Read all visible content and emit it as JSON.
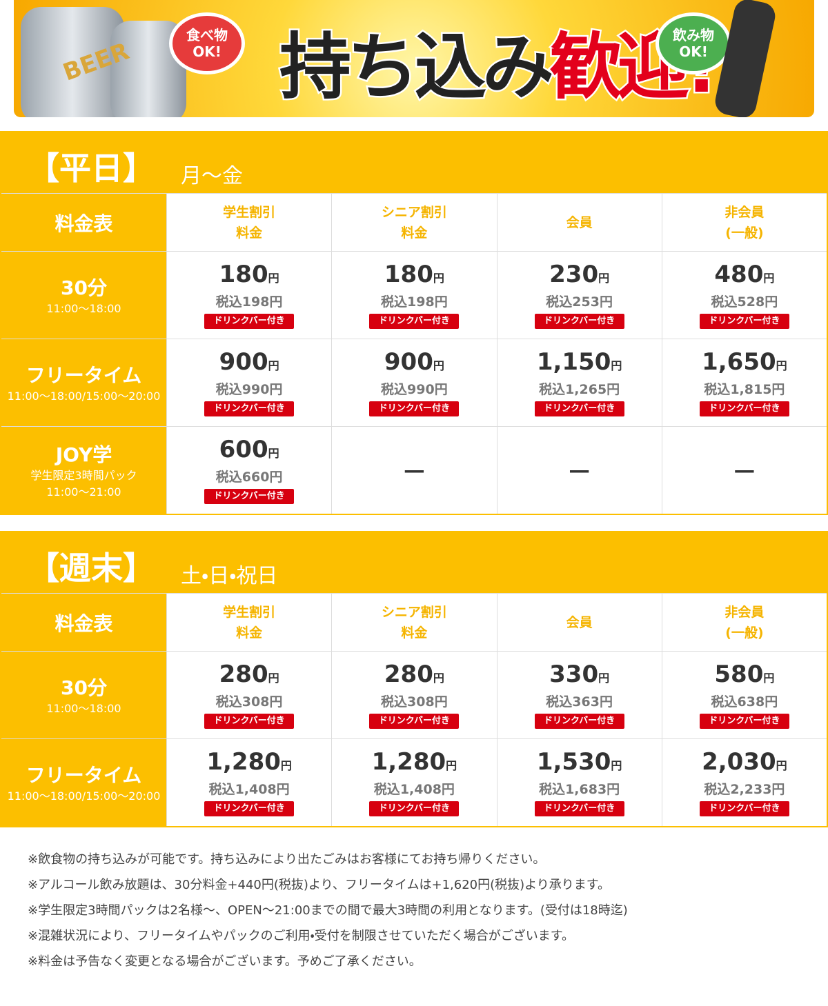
{
  "banner": {
    "beer": "BEER",
    "food": [
      "食べ物",
      "OK!"
    ],
    "title_black": "持ち込み",
    "title_red": "歓迎!",
    "drink": [
      "飲み物",
      "OK!"
    ]
  },
  "sections": [
    {
      "label": "【平日】",
      "days": "月〜金",
      "header": [
        [
          "料金表"
        ],
        [
          "学生割引",
          "料金"
        ],
        [
          "シニア割引",
          "料金"
        ],
        [
          "会員"
        ],
        [
          "非会員",
          "(一般)"
        ]
      ],
      "rows": [
        {
          "name": "30分",
          "sub": [
            "11:00〜18:00"
          ],
          "cells": [
            {
              "price": "180",
              "unit": "円",
              "tax": "税込198円",
              "badge": "ドリンクバー付き"
            },
            {
              "price": "180",
              "unit": "円",
              "tax": "税込198円",
              "badge": "ドリンクバー付き"
            },
            {
              "price": "230",
              "unit": "円",
              "tax": "税込253円",
              "badge": "ドリンクバー付き"
            },
            {
              "price": "480",
              "unit": "円",
              "tax": "税込528円",
              "badge": "ドリンクバー付き"
            }
          ]
        },
        {
          "name": "フリータイム",
          "sub": [
            "11:00〜18:00/15:00〜20:00"
          ],
          "cells": [
            {
              "price": "900",
              "unit": "円",
              "tax": "税込990円",
              "badge": "ドリンクバー付き"
            },
            {
              "price": "900",
              "unit": "円",
              "tax": "税込990円",
              "badge": "ドリンクバー付き"
            },
            {
              "price": "1,150",
              "unit": "円",
              "tax": "税込1,265円",
              "badge": "ドリンクバー付き"
            },
            {
              "price": "1,650",
              "unit": "円",
              "tax": "税込1,815円",
              "badge": "ドリンクバー付き"
            }
          ]
        },
        {
          "name": "JOY学",
          "sub": [
            "学生限定3時間パック",
            "11:00〜21:00"
          ],
          "cells": [
            {
              "price": "600",
              "unit": "円",
              "tax": "税込660円",
              "badge": "ドリンクバー付き"
            },
            {
              "dash": "－"
            },
            {
              "dash": "－"
            },
            {
              "dash": "－"
            }
          ]
        }
      ]
    },
    {
      "label": "【週末】",
      "days": "土・日・祝日",
      "header": [
        [
          "料金表"
        ],
        [
          "学生割引",
          "料金"
        ],
        [
          "シニア割引",
          "料金"
        ],
        [
          "会員"
        ],
        [
          "非会員",
          "(一般)"
        ]
      ],
      "rows": [
        {
          "name": "30分",
          "sub": [
            "11:00〜18:00"
          ],
          "cells": [
            {
              "price": "280",
              "unit": "円",
              "tax": "税込308円",
              "badge": "ドリンクバー付き"
            },
            {
              "price": "280",
              "unit": "円",
              "tax": "税込308円",
              "badge": "ドリンクバー付き"
            },
            {
              "price": "330",
              "unit": "円",
              "tax": "税込363円",
              "badge": "ドリンクバー付き"
            },
            {
              "price": "580",
              "unit": "円",
              "tax": "税込638円",
              "badge": "ドリンクバー付き"
            }
          ]
        },
        {
          "name": "フリータイム",
          "sub": [
            "11:00〜18:00/15:00〜20:00"
          ],
          "cells": [
            {
              "price": "1,280",
              "unit": "円",
              "tax": "税込1,408円",
              "badge": "ドリンクバー付き"
            },
            {
              "price": "1,280",
              "unit": "円",
              "tax": "税込1,408円",
              "badge": "ドリンクバー付き"
            },
            {
              "price": "1,530",
              "unit": "円",
              "tax": "税込1,683円",
              "badge": "ドリンクバー付き"
            },
            {
              "price": "2,030",
              "unit": "円",
              "tax": "税込2,233円",
              "badge": "ドリンクバー付き"
            }
          ]
        }
      ]
    }
  ],
  "notes": [
    "※飲食物の持ち込みが可能です。持ち込みにより出たごみはお客様にてお持ち帰りください。",
    "※アルコール飲み放題は、30分料金+440円(税抜)より、フリータイムは+1,620円(税抜)より承ります。",
    "※学生限定3時間パックは2名様〜、OPEN〜21:00までの間で最大3時間の利用となります。(受付は18時迄)",
    "※混雑状況により、フリータイムやパックのご利用・受付を制限させていただく場合がございます。",
    "※料金は予告なく変更となる場合がございます。予めご了承ください。"
  ]
}
